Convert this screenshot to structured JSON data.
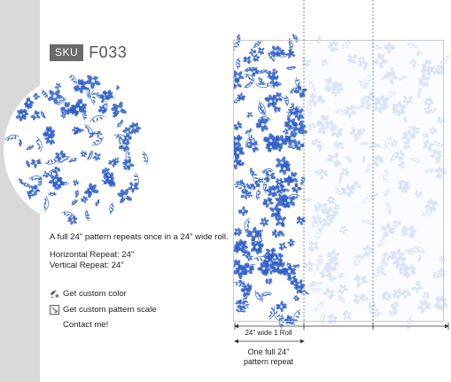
{
  "product": {
    "sku_label": "SKU",
    "sku_code": "F033"
  },
  "info": {
    "description": "A full 24\" pattern repeats once in a 24\" wide roll.",
    "horizontal_repeat": "Horizontal Repeat: 24\"",
    "vertical_repeat": "Vertical Repeat: 24\""
  },
  "actions": {
    "custom_color": "Get custom color",
    "custom_scale": "Get custom pattern scale",
    "contact": "Contact me!"
  },
  "preview": {
    "roll_label": "24\" wide 1 Roll",
    "repeat_label_line1": "One full 24\"",
    "repeat_label_line2": "pattern repeat"
  },
  "colors": {
    "pattern_blue": "#2f5fc9",
    "pattern_light": "#dbe5f7",
    "sidebar_gray": "#d9d9d9",
    "badge_gray": "#6b6b6b"
  },
  "icons": {
    "color": "palette-icon",
    "scale": "scale-icon"
  }
}
